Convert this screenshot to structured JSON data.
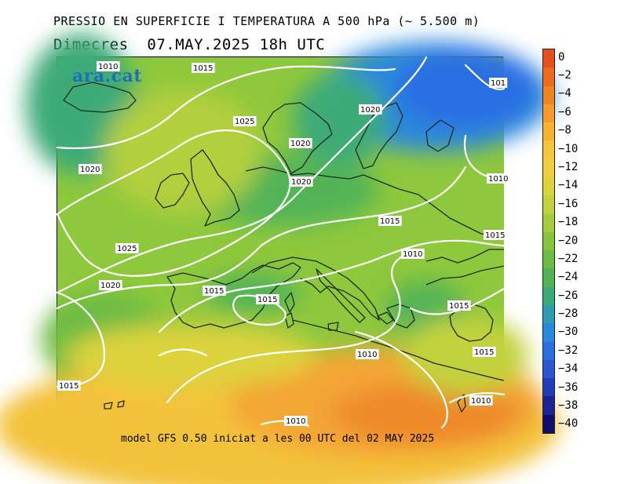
{
  "title": "PRESSIO EN SUPERFICIE I TEMPERATURA A 500 hPa (~ 5.500 m)",
  "subtitle": "Dimecres  07.MAY.2025 18h UTC",
  "logo_text": "ara.cat",
  "caption": "model GFS 0.50 iniciat a les 00 UTC del 02 MAY 2025",
  "colorbar": {
    "labels": [
      "0",
      "−2",
      "−4",
      "−6",
      "−8",
      "−10",
      "−12",
      "−14",
      "−16",
      "−18",
      "−20",
      "−22",
      "−24",
      "−26",
      "−28",
      "−30",
      "−32",
      "−34",
      "−36",
      "−38",
      "−40"
    ],
    "colors": [
      "#e5501c",
      "#ec6a1e",
      "#f08422",
      "#f39a2a",
      "#f6b232",
      "#f7c63a",
      "#eed03e",
      "#dcd33e",
      "#c2d23e",
      "#a4cc3e",
      "#86c43e",
      "#6cbc44",
      "#52b456",
      "#3eaa78",
      "#2e9cb0",
      "#2a88dc",
      "#2a6ee4",
      "#2a56d0",
      "#243cb4",
      "#1a2494",
      "#120c6c"
    ]
  },
  "isobars": {
    "labels": [
      "1010",
      "1015",
      "1025",
      "1020",
      "1020",
      "1020",
      "1020",
      "1010",
      "1025",
      "1015",
      "1010",
      "1020",
      "1015",
      "1015",
      "1015",
      "1015",
      "1010",
      "1015",
      "1015",
      "1010",
      "1010",
      "101"
    ]
  }
}
